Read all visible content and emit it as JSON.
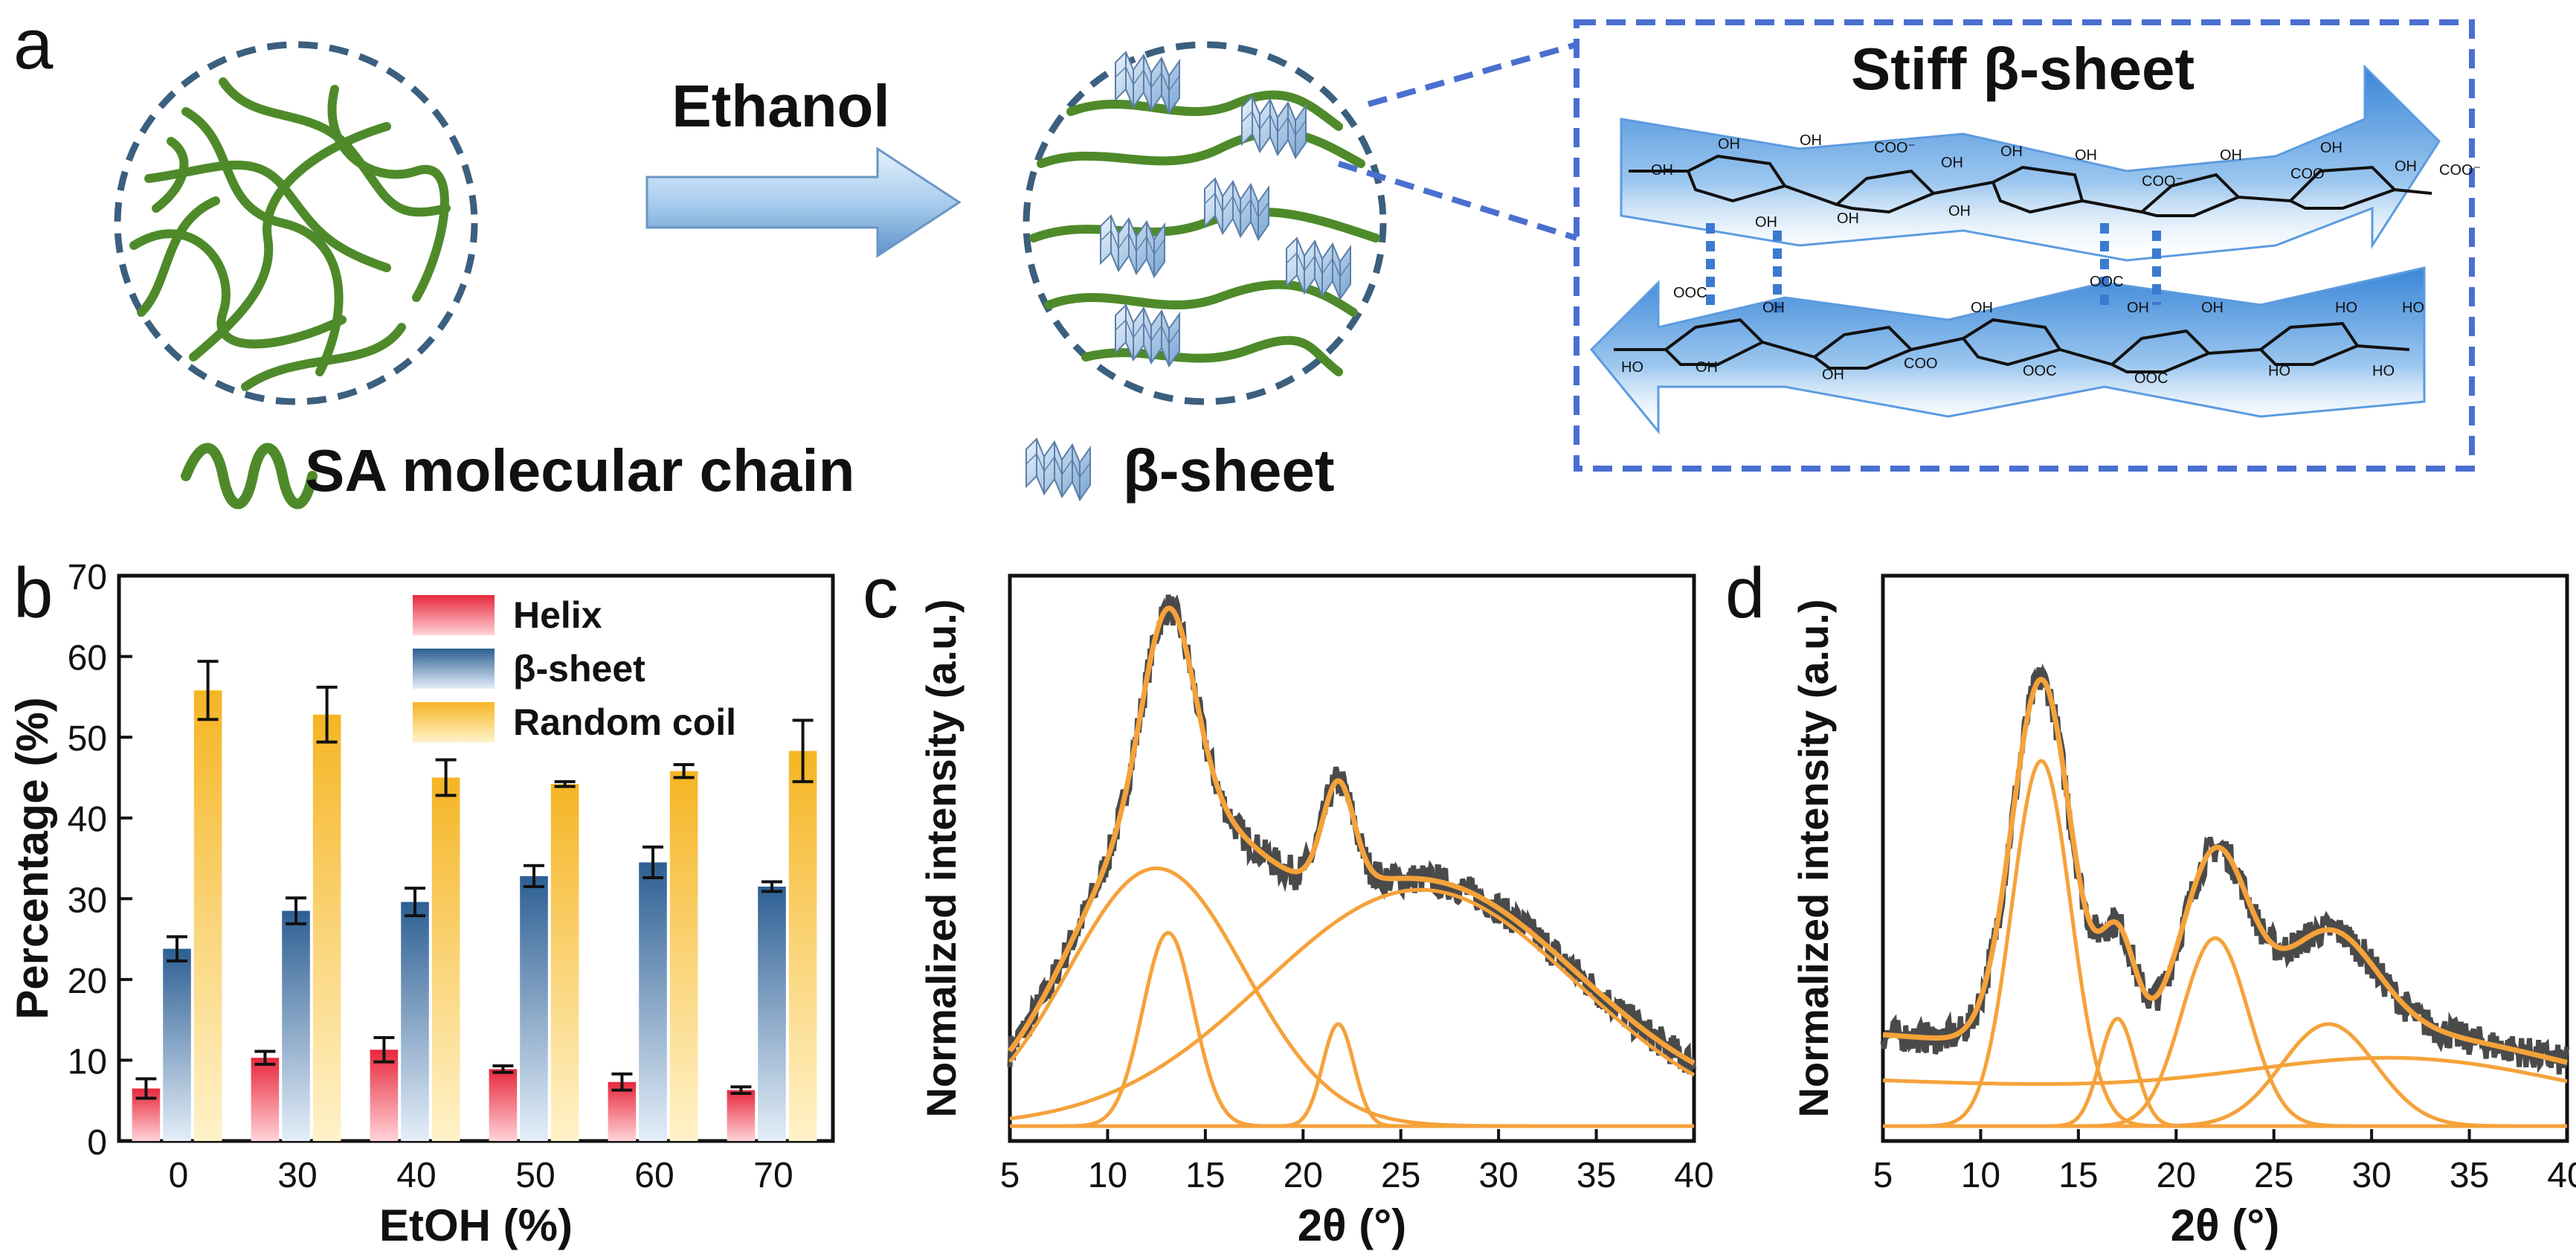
{
  "colors": {
    "chain": "#4e8a2a",
    "chain_dark": "#2f5e16",
    "circle": "#3b5f7e",
    "box": "#4a6fd0",
    "ribbon": "#5c9be0",
    "helix": "#e8283c",
    "beta": "#2d5f93",
    "coil": "#f5b524",
    "fit": "#f5a23a",
    "raw": "#4a4a4a"
  },
  "panel_a": {
    "label": "a",
    "arrow_label": "Ethanol",
    "box_title": "Stiff β-sheet",
    "legend_chain": "SA molecular chain",
    "legend_sheet": "β-sheet",
    "chem_labels": [
      "OH",
      "OH",
      "COO⁻",
      "OH",
      "OH",
      "OH",
      "COO⁻",
      "OH",
      "COO⁻",
      "OH",
      "OH",
      "COO⁻",
      "OH",
      "OH",
      "OH",
      "OH",
      "OOC",
      "OOC",
      "OH",
      "OH",
      "OH",
      "HO",
      "COO",
      "OH",
      "OOC",
      "OH",
      "OOC",
      "OH",
      "HO",
      "HO",
      "HO",
      "HO"
    ]
  },
  "chart_data": [
    {
      "panel": "b",
      "type": "bar",
      "title": "",
      "xlabel": "EtOH (%)",
      "ylabel": "Percentage (%)",
      "categories": [
        "0",
        "30",
        "40",
        "50",
        "60",
        "70"
      ],
      "ylim": [
        0,
        70
      ],
      "yticks": [
        "0",
        "10",
        "20",
        "30",
        "40",
        "50",
        "60",
        "70"
      ],
      "series": [
        {
          "name": "Helix",
          "values": [
            6.5,
            10.3,
            11.3,
            8.9,
            7.3,
            6.3
          ],
          "errors": [
            1.2,
            0.8,
            1.5,
            0.4,
            1.0,
            0.4
          ]
        },
        {
          "name": "β-sheet",
          "values": [
            23.8,
            28.5,
            29.6,
            32.8,
            34.5,
            31.5
          ],
          "errors": [
            1.5,
            1.6,
            1.7,
            1.3,
            1.9,
            0.6
          ]
        },
        {
          "name": "Random coil",
          "values": [
            55.8,
            52.8,
            45.0,
            44.2,
            45.8,
            48.3
          ],
          "errors": [
            3.6,
            3.4,
            2.2,
            0.3,
            0.8,
            3.8
          ]
        }
      ],
      "legend": "top-center"
    },
    {
      "panel": "c",
      "type": "line",
      "xlabel": "2θ (°)",
      "ylabel": "Normalized intensity (a.u.)",
      "xlim": [
        5,
        40
      ],
      "xticks": [
        "5",
        "10",
        "15",
        "20",
        "25",
        "30",
        "35",
        "40"
      ],
      "peaks": [
        {
          "center": 12.5,
          "amplitude": 0.48,
          "width": 4.5,
          "baseline": 0.02
        },
        {
          "center": 13.1,
          "amplitude": 0.36,
          "width": 1.3
        },
        {
          "center": 21.8,
          "amplitude": 0.19,
          "width": 0.8
        },
        {
          "center": 26.0,
          "amplitude": 0.44,
          "width": 8.0
        }
      ]
    },
    {
      "panel": "d",
      "type": "line",
      "xlabel": "2θ (°)",
      "ylabel": "Normalized intensity (a.u.)",
      "xlim": [
        5,
        40
      ],
      "xticks": [
        "5",
        "10",
        "15",
        "20",
        "25",
        "30",
        "35",
        "40"
      ],
      "peaks": [
        {
          "center": 13.1,
          "amplitude": 0.68,
          "width": 1.5
        },
        {
          "center": 17.0,
          "amplitude": 0.2,
          "width": 0.9
        },
        {
          "center": 22.0,
          "amplitude": 0.35,
          "width": 1.7
        },
        {
          "center": 27.8,
          "amplitude": 0.19,
          "width": 2.4
        },
        {
          "center": 32.0,
          "amplitude": 0.08,
          "width": 8.0
        }
      ],
      "baseline_start": 0.17,
      "baseline_end": 0.07
    }
  ]
}
